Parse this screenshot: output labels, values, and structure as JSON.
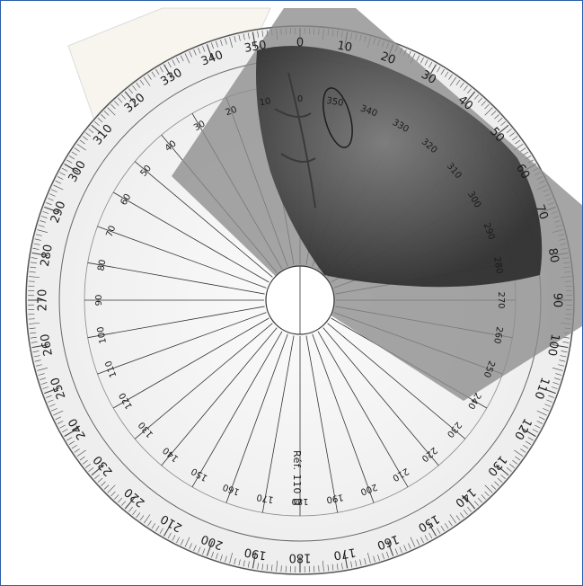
{
  "photo": {
    "subject": "Circular 360-degree protractor with a photo fragment overlay",
    "colors": {
      "disc": "#f4f4f4",
      "ring": "#ececec",
      "ink": "#1a1a1a",
      "overlay": "#8c8c8c",
      "fragment": "#5a5a5a",
      "paper": "#f7f5ee"
    }
  },
  "protractor": {
    "outer_labels": [
      "0",
      "10",
      "20",
      "30",
      "40",
      "50",
      "60",
      "70",
      "80",
      "90",
      "100",
      "110",
      "120",
      "130",
      "140",
      "150",
      "160",
      "170",
      "180",
      "190",
      "200",
      "210",
      "220",
      "230",
      "240",
      "250",
      "260",
      "270",
      "280",
      "290",
      "300",
      "310",
      "320",
      "330",
      "340",
      "350"
    ],
    "inner_labels_left": [
      "20",
      "10",
      "0",
      "350",
      "340",
      "330",
      "320",
      "310",
      "300",
      "290",
      "280",
      "270",
      "260",
      "250",
      "240",
      "230",
      "220",
      "210",
      "200",
      "190",
      "180",
      "170",
      "160",
      "150",
      "140",
      "130",
      "120",
      "110",
      "100",
      "90",
      "80",
      "70",
      "60",
      "50",
      "40",
      "30"
    ],
    "reference": "Réf. 110 D"
  }
}
